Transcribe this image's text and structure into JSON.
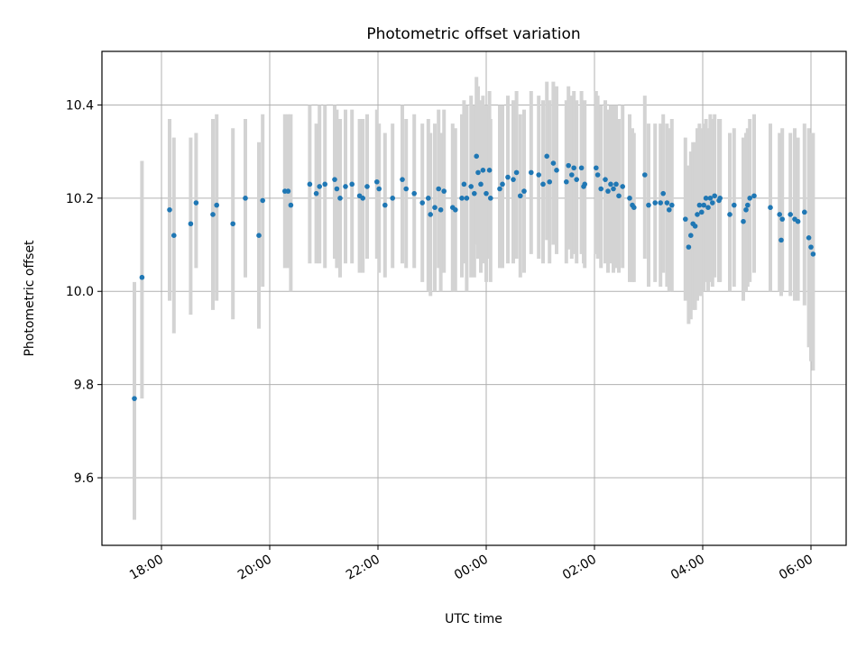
{
  "chart_data": {
    "type": "scatter",
    "title": "Photometric offset variation",
    "xlabel": "UTC time",
    "ylabel": "Photometric offset",
    "x_unit": "hours after 00:00 UTC (negative = previous evening)",
    "xlim": [
      -7.1,
      6.65
    ],
    "ylim": [
      9.455,
      10.515
    ],
    "x_ticks": [
      -6,
      -4,
      -2,
      0,
      2,
      4,
      6
    ],
    "x_tick_labels": [
      "18:00",
      "20:00",
      "22:00",
      "00:00",
      "02:00",
      "04:00",
      "06:00"
    ],
    "y_ticks": [
      9.6,
      9.8,
      10.0,
      10.2,
      10.4
    ],
    "y_tick_labels": [
      "9.6",
      "9.8",
      "10.0",
      "10.2",
      "10.4"
    ],
    "grid": true,
    "colors": {
      "point": "#1f77b4",
      "errorbar": "#d3d3d3",
      "grid": "#b0b0b0"
    },
    "points": [
      {
        "x": -6.5,
        "y": 9.77,
        "lo": 9.51,
        "hi": 10.02
      },
      {
        "x": -6.36,
        "y": 10.03,
        "lo": 9.77,
        "hi": 10.28
      },
      {
        "x": -5.85,
        "y": 10.175,
        "lo": 9.98,
        "hi": 10.37
      },
      {
        "x": -5.77,
        "y": 10.12,
        "lo": 9.91,
        "hi": 10.33
      },
      {
        "x": -5.46,
        "y": 10.145,
        "lo": 9.95,
        "hi": 10.33
      },
      {
        "x": -5.36,
        "y": 10.19,
        "lo": 10.05,
        "hi": 10.34
      },
      {
        "x": -5.05,
        "y": 10.165,
        "lo": 9.96,
        "hi": 10.37
      },
      {
        "x": -4.98,
        "y": 10.185,
        "lo": 9.98,
        "hi": 10.38
      },
      {
        "x": -4.68,
        "y": 10.145,
        "lo": 9.94,
        "hi": 10.35
      },
      {
        "x": -4.45,
        "y": 10.2,
        "lo": 10.03,
        "hi": 10.37
      },
      {
        "x": -4.2,
        "y": 10.12,
        "lo": 9.92,
        "hi": 10.32
      },
      {
        "x": -4.13,
        "y": 10.195,
        "lo": 10.01,
        "hi": 10.38
      },
      {
        "x": -3.72,
        "y": 10.215,
        "lo": 10.05,
        "hi": 10.38
      },
      {
        "x": -3.66,
        "y": 10.215,
        "lo": 10.05,
        "hi": 10.38
      },
      {
        "x": -3.61,
        "y": 10.185,
        "lo": 10.0,
        "hi": 10.38
      },
      {
        "x": -3.26,
        "y": 10.23,
        "lo": 10.06,
        "hi": 10.4
      },
      {
        "x": -3.14,
        "y": 10.21,
        "lo": 10.06,
        "hi": 10.36
      },
      {
        "x": -3.08,
        "y": 10.225,
        "lo": 10.06,
        "hi": 10.4
      },
      {
        "x": -2.98,
        "y": 10.23,
        "lo": 10.05,
        "hi": 10.4
      },
      {
        "x": -2.8,
        "y": 10.24,
        "lo": 10.07,
        "hi": 10.4
      },
      {
        "x": -2.76,
        "y": 10.22,
        "lo": 10.05,
        "hi": 10.39
      },
      {
        "x": -2.7,
        "y": 10.2,
        "lo": 10.03,
        "hi": 10.37
      },
      {
        "x": -2.6,
        "y": 10.225,
        "lo": 10.06,
        "hi": 10.39
      },
      {
        "x": -2.48,
        "y": 10.23,
        "lo": 10.06,
        "hi": 10.39
      },
      {
        "x": -2.34,
        "y": 10.205,
        "lo": 10.04,
        "hi": 10.37
      },
      {
        "x": -2.28,
        "y": 10.2,
        "lo": 10.04,
        "hi": 10.37
      },
      {
        "x": -2.2,
        "y": 10.225,
        "lo": 10.07,
        "hi": 10.38
      },
      {
        "x": -2.02,
        "y": 10.235,
        "lo": 10.07,
        "hi": 10.39
      },
      {
        "x": -1.98,
        "y": 10.22,
        "lo": 10.04,
        "hi": 10.36
      },
      {
        "x": -1.87,
        "y": 10.185,
        "lo": 10.03,
        "hi": 10.34
      },
      {
        "x": -1.73,
        "y": 10.2,
        "lo": 10.05,
        "hi": 10.36
      },
      {
        "x": -1.55,
        "y": 10.24,
        "lo": 10.06,
        "hi": 10.4
      },
      {
        "x": -1.48,
        "y": 10.22,
        "lo": 10.05,
        "hi": 10.37
      },
      {
        "x": -1.33,
        "y": 10.21,
        "lo": 10.05,
        "hi": 10.38
      },
      {
        "x": -1.18,
        "y": 10.19,
        "lo": 10.02,
        "hi": 10.36
      },
      {
        "x": -1.07,
        "y": 10.2,
        "lo": 10.0,
        "hi": 10.37
      },
      {
        "x": -1.03,
        "y": 10.165,
        "lo": 9.99,
        "hi": 10.34
      },
      {
        "x": -0.95,
        "y": 10.18,
        "lo": 10.0,
        "hi": 10.36
      },
      {
        "x": -0.88,
        "y": 10.22,
        "lo": 10.05,
        "hi": 10.39
      },
      {
        "x": -0.84,
        "y": 10.175,
        "lo": 10.0,
        "hi": 10.34
      },
      {
        "x": -0.78,
        "y": 10.215,
        "lo": 10.04,
        "hi": 10.39
      },
      {
        "x": -0.62,
        "y": 10.18,
        "lo": 10.0,
        "hi": 10.36
      },
      {
        "x": -0.57,
        "y": 10.175,
        "lo": 10.0,
        "hi": 10.35
      },
      {
        "x": -0.45,
        "y": 10.2,
        "lo": 10.03,
        "hi": 10.38
      },
      {
        "x": -0.41,
        "y": 10.23,
        "lo": 10.06,
        "hi": 10.41
      },
      {
        "x": -0.36,
        "y": 10.2,
        "lo": 10.0,
        "hi": 10.4
      },
      {
        "x": -0.28,
        "y": 10.225,
        "lo": 10.03,
        "hi": 10.42
      },
      {
        "x": -0.22,
        "y": 10.21,
        "lo": 10.03,
        "hi": 10.4
      },
      {
        "x": -0.18,
        "y": 10.29,
        "lo": 10.1,
        "hi": 10.46
      },
      {
        "x": -0.15,
        "y": 10.255,
        "lo": 10.07,
        "hi": 10.44
      },
      {
        "x": -0.1,
        "y": 10.23,
        "lo": 10.04,
        "hi": 10.41
      },
      {
        "x": -0.06,
        "y": 10.26,
        "lo": 10.06,
        "hi": 10.42
      },
      {
        "x": 0.0,
        "y": 10.21,
        "lo": 10.02,
        "hi": 10.4
      },
      {
        "x": 0.06,
        "y": 10.26,
        "lo": 10.07,
        "hi": 10.43
      },
      {
        "x": 0.08,
        "y": 10.2,
        "lo": 10.02,
        "hi": 10.37
      },
      {
        "x": 0.25,
        "y": 10.22,
        "lo": 10.05,
        "hi": 10.4
      },
      {
        "x": 0.3,
        "y": 10.23,
        "lo": 10.05,
        "hi": 10.4
      },
      {
        "x": 0.4,
        "y": 10.245,
        "lo": 10.06,
        "hi": 10.42
      },
      {
        "x": 0.5,
        "y": 10.24,
        "lo": 10.06,
        "hi": 10.41
      },
      {
        "x": 0.56,
        "y": 10.255,
        "lo": 10.07,
        "hi": 10.43
      },
      {
        "x": 0.63,
        "y": 10.205,
        "lo": 10.03,
        "hi": 10.38
      },
      {
        "x": 0.7,
        "y": 10.215,
        "lo": 10.04,
        "hi": 10.39
      },
      {
        "x": 0.83,
        "y": 10.255,
        "lo": 10.08,
        "hi": 10.43
      },
      {
        "x": 0.97,
        "y": 10.25,
        "lo": 10.07,
        "hi": 10.42
      },
      {
        "x": 1.05,
        "y": 10.23,
        "lo": 10.06,
        "hi": 10.41
      },
      {
        "x": 1.12,
        "y": 10.29,
        "lo": 10.11,
        "hi": 10.45
      },
      {
        "x": 1.17,
        "y": 10.235,
        "lo": 10.06,
        "hi": 10.41
      },
      {
        "x": 1.24,
        "y": 10.275,
        "lo": 10.1,
        "hi": 10.45
      },
      {
        "x": 1.3,
        "y": 10.26,
        "lo": 10.08,
        "hi": 10.44
      },
      {
        "x": 1.48,
        "y": 10.235,
        "lo": 10.06,
        "hi": 10.41
      },
      {
        "x": 1.52,
        "y": 10.27,
        "lo": 10.09,
        "hi": 10.44
      },
      {
        "x": 1.58,
        "y": 10.25,
        "lo": 10.07,
        "hi": 10.42
      },
      {
        "x": 1.62,
        "y": 10.265,
        "lo": 10.08,
        "hi": 10.43
      },
      {
        "x": 1.67,
        "y": 10.24,
        "lo": 10.06,
        "hi": 10.41
      },
      {
        "x": 1.76,
        "y": 10.265,
        "lo": 10.08,
        "hi": 10.43
      },
      {
        "x": 1.8,
        "y": 10.225,
        "lo": 10.06,
        "hi": 10.4
      },
      {
        "x": 1.82,
        "y": 10.23,
        "lo": 10.05,
        "hi": 10.41
      },
      {
        "x": 2.03,
        "y": 10.265,
        "lo": 10.08,
        "hi": 10.43
      },
      {
        "x": 2.06,
        "y": 10.25,
        "lo": 10.07,
        "hi": 10.42
      },
      {
        "x": 2.12,
        "y": 10.22,
        "lo": 10.05,
        "hi": 10.4
      },
      {
        "x": 2.2,
        "y": 10.24,
        "lo": 10.06,
        "hi": 10.41
      },
      {
        "x": 2.25,
        "y": 10.215,
        "lo": 10.04,
        "hi": 10.39
      },
      {
        "x": 2.3,
        "y": 10.23,
        "lo": 10.06,
        "hi": 10.4
      },
      {
        "x": 2.35,
        "y": 10.22,
        "lo": 10.04,
        "hi": 10.4
      },
      {
        "x": 2.4,
        "y": 10.23,
        "lo": 10.05,
        "hi": 10.4
      },
      {
        "x": 2.45,
        "y": 10.205,
        "lo": 10.04,
        "hi": 10.37
      },
      {
        "x": 2.52,
        "y": 10.225,
        "lo": 10.05,
        "hi": 10.4
      },
      {
        "x": 2.65,
        "y": 10.2,
        "lo": 10.02,
        "hi": 10.38
      },
      {
        "x": 2.7,
        "y": 10.185,
        "lo": 10.02,
        "hi": 10.35
      },
      {
        "x": 2.73,
        "y": 10.18,
        "lo": 10.02,
        "hi": 10.34
      },
      {
        "x": 2.93,
        "y": 10.25,
        "lo": 10.07,
        "hi": 10.42
      },
      {
        "x": 3.0,
        "y": 10.185,
        "lo": 10.01,
        "hi": 10.36
      },
      {
        "x": 3.12,
        "y": 10.19,
        "lo": 10.02,
        "hi": 10.36
      },
      {
        "x": 3.22,
        "y": 10.19,
        "lo": 10.01,
        "hi": 10.36
      },
      {
        "x": 3.27,
        "y": 10.21,
        "lo": 10.04,
        "hi": 10.38
      },
      {
        "x": 3.34,
        "y": 10.19,
        "lo": 10.01,
        "hi": 10.36
      },
      {
        "x": 3.38,
        "y": 10.175,
        "lo": 10.0,
        "hi": 10.35
      },
      {
        "x": 3.43,
        "y": 10.185,
        "lo": 10.0,
        "hi": 10.37
      },
      {
        "x": 3.68,
        "y": 10.155,
        "lo": 9.98,
        "hi": 10.33
      },
      {
        "x": 3.74,
        "y": 10.095,
        "lo": 9.93,
        "hi": 10.27
      },
      {
        "x": 3.78,
        "y": 10.12,
        "lo": 9.94,
        "hi": 10.3
      },
      {
        "x": 3.82,
        "y": 10.145,
        "lo": 9.96,
        "hi": 10.32
      },
      {
        "x": 3.86,
        "y": 10.14,
        "lo": 9.96,
        "hi": 10.32
      },
      {
        "x": 3.9,
        "y": 10.165,
        "lo": 9.98,
        "hi": 10.35
      },
      {
        "x": 3.94,
        "y": 10.185,
        "lo": 9.99,
        "hi": 10.36
      },
      {
        "x": 3.98,
        "y": 10.17,
        "lo": 9.99,
        "hi": 10.35
      },
      {
        "x": 4.02,
        "y": 10.185,
        "lo": 10.0,
        "hi": 10.36
      },
      {
        "x": 4.06,
        "y": 10.2,
        "lo": 10.02,
        "hi": 10.37
      },
      {
        "x": 4.1,
        "y": 10.18,
        "lo": 10.0,
        "hi": 10.35
      },
      {
        "x": 4.14,
        "y": 10.2,
        "lo": 10.02,
        "hi": 10.38
      },
      {
        "x": 4.18,
        "y": 10.19,
        "lo": 10.01,
        "hi": 10.37
      },
      {
        "x": 4.22,
        "y": 10.205,
        "lo": 10.03,
        "hi": 10.38
      },
      {
        "x": 4.3,
        "y": 10.195,
        "lo": 10.02,
        "hi": 10.37
      },
      {
        "x": 4.32,
        "y": 10.2,
        "lo": 10.02,
        "hi": 10.37
      },
      {
        "x": 4.5,
        "y": 10.165,
        "lo": 10.0,
        "hi": 10.34
      },
      {
        "x": 4.58,
        "y": 10.185,
        "lo": 10.01,
        "hi": 10.35
      },
      {
        "x": 4.75,
        "y": 10.15,
        "lo": 9.98,
        "hi": 10.33
      },
      {
        "x": 4.8,
        "y": 10.175,
        "lo": 10.0,
        "hi": 10.34
      },
      {
        "x": 4.83,
        "y": 10.185,
        "lo": 10.01,
        "hi": 10.35
      },
      {
        "x": 4.87,
        "y": 10.2,
        "lo": 10.02,
        "hi": 10.37
      },
      {
        "x": 4.95,
        "y": 10.205,
        "lo": 10.04,
        "hi": 10.38
      },
      {
        "x": 5.25,
        "y": 10.18,
        "lo": 10.0,
        "hi": 10.36
      },
      {
        "x": 5.42,
        "y": 10.165,
        "lo": 10.0,
        "hi": 10.34
      },
      {
        "x": 5.45,
        "y": 10.11,
        "lo": 9.99,
        "hi": 10.33
      },
      {
        "x": 5.47,
        "y": 10.155,
        "lo": 10.0,
        "hi": 10.35
      },
      {
        "x": 5.62,
        "y": 10.165,
        "lo": 9.99,
        "hi": 10.34
      },
      {
        "x": 5.7,
        "y": 10.155,
        "lo": 9.98,
        "hi": 10.35
      },
      {
        "x": 5.76,
        "y": 10.15,
        "lo": 9.98,
        "hi": 10.33
      },
      {
        "x": 5.88,
        "y": 10.17,
        "lo": 9.97,
        "hi": 10.36
      },
      {
        "x": 5.96,
        "y": 10.115,
        "lo": 9.88,
        "hi": 10.35
      },
      {
        "x": 6.0,
        "y": 10.095,
        "lo": 9.85,
        "hi": 10.34
      },
      {
        "x": 6.04,
        "y": 10.08,
        "lo": 9.83,
        "hi": 10.34
      }
    ]
  }
}
